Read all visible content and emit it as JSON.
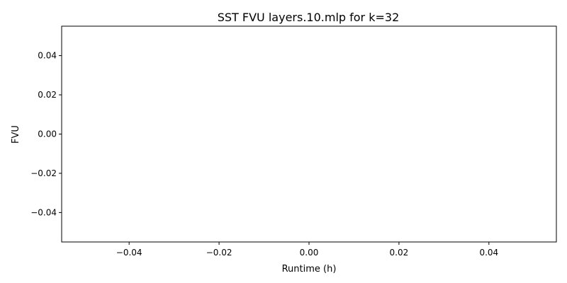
{
  "chart_data": {
    "type": "line",
    "title": "SST FVU layers.10.mlp for k=32",
    "xlabel": "Runtime (h)",
    "ylabel": "FVU",
    "xlim": [
      -0.055,
      0.055
    ],
    "ylim": [
      -0.055,
      0.055
    ],
    "xticks": [
      -0.04,
      -0.02,
      0.0,
      0.02,
      0.04
    ],
    "yticks": [
      -0.04,
      -0.02,
      0.0,
      0.02,
      0.04
    ],
    "xtick_labels": [
      "−0.04",
      "−0.02",
      "0.00",
      "0.02",
      "0.04"
    ],
    "ytick_labels": [
      "−0.04",
      "−0.02",
      "0.00",
      "0.02",
      "0.04"
    ],
    "series": [],
    "grid": false,
    "legend": "none"
  }
}
